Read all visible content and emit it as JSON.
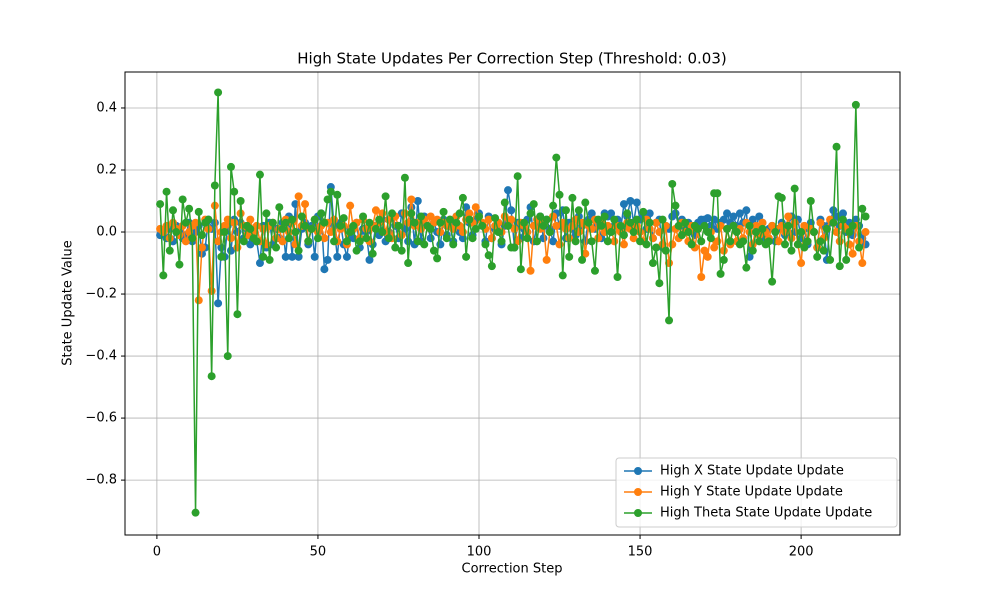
{
  "chart_data": {
    "type": "line",
    "title": "High State Updates Per Correction Step (Threshold: 0.03)",
    "x_label": "Correction Step",
    "y_label": "State Update Value",
    "x": [
      1,
      2,
      3,
      4,
      5,
      6,
      7,
      8,
      9,
      10,
      11,
      12,
      13,
      14,
      15,
      16,
      17,
      18,
      19,
      20,
      21,
      22,
      23,
      24,
      25,
      26,
      27,
      28,
      29,
      30,
      31,
      32,
      33,
      34,
      35,
      36,
      37,
      38,
      39,
      40,
      41,
      42,
      43,
      44,
      45,
      46,
      47,
      48,
      49,
      50,
      51,
      52,
      53,
      54,
      55,
      56,
      57,
      58,
      59,
      60,
      61,
      62,
      63,
      64,
      65,
      66,
      67,
      68,
      69,
      70,
      71,
      72,
      73,
      74,
      75,
      76,
      77,
      78,
      79,
      80,
      81,
      82,
      83,
      84,
      85,
      86,
      87,
      88,
      89,
      90,
      91,
      92,
      93,
      94,
      95,
      96,
      97,
      98,
      99,
      100,
      101,
      102,
      103,
      104,
      105,
      106,
      107,
      108,
      109,
      110,
      111,
      112,
      113,
      114,
      115,
      116,
      117,
      118,
      119,
      120,
      121,
      122,
      123,
      124,
      125,
      126,
      127,
      128,
      129,
      130,
      131,
      132,
      133,
      134,
      135,
      136,
      137,
      138,
      139,
      140,
      141,
      142,
      143,
      144,
      145,
      146,
      147,
      148,
      149,
      150,
      151,
      152,
      153,
      154,
      155,
      156,
      157,
      158,
      159,
      160,
      161,
      162,
      163,
      164,
      165,
      166,
      167,
      168,
      169,
      170,
      171,
      172,
      173,
      174,
      175,
      176,
      177,
      178,
      179,
      180,
      181,
      182,
      183,
      184,
      185,
      186,
      187,
      188,
      189,
      190,
      191,
      192,
      193,
      194,
      195,
      196,
      197,
      198,
      199,
      200,
      201,
      202,
      203,
      204,
      205,
      206,
      207,
      208,
      209,
      210,
      211,
      212,
      213,
      214,
      215,
      216,
      217,
      218,
      219,
      220
    ],
    "series": [
      {
        "name": "High X State Update Update",
        "color": "#1f77b4",
        "values": [
          -0.01,
          0.0,
          -0.02,
          0.01,
          -0.03,
          0.02,
          0.0,
          -0.02,
          -0.01,
          0.03,
          -0.03,
          0.0,
          0.02,
          -0.07,
          -0.05,
          0.04,
          0.01,
          0.03,
          -0.23,
          -0.05,
          -0.08,
          0.02,
          -0.06,
          0.04,
          0.0,
          0.03,
          -0.02,
          0.01,
          -0.04,
          -0.01,
          -0.03,
          -0.1,
          0.02,
          -0.05,
          0.03,
          -0.04,
          0.01,
          -0.02,
          0.03,
          -0.08,
          0.05,
          -0.08,
          0.09,
          -0.08,
          0.01,
          0.03,
          -0.04,
          0.02,
          -0.08,
          0.05,
          0.06,
          -0.12,
          -0.09,
          0.145,
          0.02,
          -0.08,
          0.03,
          -0.04,
          -0.08,
          0.01,
          -0.02,
          0.03,
          -0.05,
          0.01,
          0.0,
          -0.09,
          -0.04,
          0.02,
          -0.01,
          0.04,
          -0.03,
          0.0,
          0.05,
          0.02,
          -0.02,
          0.06,
          0.01,
          -0.03,
          0.08,
          -0.04,
          0.1,
          -0.03,
          0.05,
          0.02,
          -0.02,
          0.03,
          0.0,
          -0.04,
          0.04,
          -0.01,
          0.02,
          -0.03,
          0.05,
          0.0,
          -0.02,
          0.08,
          0.03,
          -0.01,
          0.04,
          0.06,
          0.02,
          -0.03,
          0.05,
          -0.02,
          0.01,
          0.03,
          -0.04,
          0.02,
          0.135,
          0.07,
          -0.05,
          0.03,
          -0.02,
          0.01,
          0.04,
          0.08,
          -0.03,
          0.02,
          0.05,
          -0.02,
          0.04,
          0.01,
          -0.03,
          0.06,
          0.02,
          0.07,
          -0.02,
          0.03,
          0.01,
          -0.01,
          0.05,
          0.02,
          -0.03,
          0.04,
          0.06,
          0.01,
          0.03,
          -0.02,
          0.06,
          0.05,
          0.06,
          0.02,
          0.04,
          0.01,
          0.09,
          0.05,
          0.1,
          0.03,
          0.095,
          0.04,
          0.05,
          0.01,
          0.06,
          -0.02,
          0.03,
          0.04,
          -0.05,
          0.02,
          0.01,
          0.05,
          0.06,
          0.02,
          0.04,
          0.01,
          0.03,
          0.02,
          -0.01,
          0.03,
          0.04,
          0.04,
          0.045,
          0.02,
          0.04,
          0.01,
          0.03,
          0.04,
          0.06,
          0.03,
          0.05,
          0.02,
          0.06,
          0.03,
          0.07,
          -0.08,
          0.04,
          0.02,
          0.05,
          0.03,
          -0.02,
          0.01,
          0.02,
          -0.03,
          0.01,
          0.03,
          -0.01,
          0.02,
          0.05,
          0.0,
          0.04,
          -0.02,
          0.01,
          -0.04,
          0.03,
          0.0,
          -0.05,
          0.04,
          0.02,
          -0.09,
          0.03,
          0.07,
          0.05,
          0.02,
          0.06,
          0.0,
          0.03,
          -0.01,
          0.04,
          0.02,
          -0.02,
          -0.04
        ]
      },
      {
        "name": "High Y State Update Update",
        "color": "#ff7f0e",
        "values": [
          0.01,
          0.0,
          0.02,
          -0.02,
          0.03,
          0.01,
          -0.01,
          0.02,
          -0.03,
          0.0,
          0.02,
          0.03,
          -0.22,
          -0.05,
          0.04,
          0.01,
          -0.19,
          0.085,
          -0.03,
          0.0,
          0.02,
          0.04,
          -0.02,
          0.03,
          -0.05,
          0.06,
          0.02,
          -0.01,
          0.04,
          0.0,
          0.02,
          -0.03,
          0.01,
          -0.04,
          0.02,
          0.03,
          -0.02,
          0.01,
          -0.03,
          0.04,
          0.0,
          0.03,
          -0.04,
          0.115,
          0.02,
          0.09,
          -0.03,
          0.01,
          0.04,
          0.0,
          0.02,
          -0.02,
          0.03,
          0.0,
          0.04,
          -0.03,
          0.01,
          0.02,
          -0.04,
          0.085,
          0.01,
          0.03,
          -0.02,
          0.04,
          0.01,
          -0.03,
          0.02,
          0.07,
          0.03,
          0.06,
          0.0,
          0.04,
          -0.02,
          0.05,
          0.02,
          -0.01,
          0.06,
          0.03,
          0.105,
          0.02,
          0.03,
          0.01,
          0.04,
          0.02,
          0.05,
          0.03,
          0.04,
          0.0,
          0.03,
          0.02,
          0.04,
          0.01,
          0.05,
          0.02,
          0.0,
          0.04,
          0.06,
          0.03,
          0.08,
          0.05,
          0.03,
          0.01,
          0.04,
          -0.02,
          0.02,
          0.03,
          0.0,
          0.05,
          0.02,
          0.04,
          0.01,
          -0.03,
          0.03,
          0.02,
          0.0,
          -0.125,
          0.02,
          0.04,
          0.01,
          0.03,
          -0.09,
          0.0,
          0.05,
          0.02,
          -0.04,
          0.03,
          0.01,
          -0.02,
          0.02,
          0.04,
          0.0,
          0.03,
          -0.07,
          0.02,
          0.01,
          0.04,
          -0.02,
          0.03,
          0.0,
          0.02,
          0.01,
          -0.03,
          0.02,
          0.0,
          -0.04,
          0.03,
          0.01,
          -0.02,
          0.02,
          0.0,
          -0.03,
          0.04,
          0.01,
          -0.02,
          0.03,
          0.0,
          -0.04,
          0.02,
          -0.1,
          -0.04,
          0.01,
          -0.02,
          0.03,
          0.0,
          -0.03,
          0.02,
          -0.05,
          0.01,
          -0.145,
          -0.06,
          -0.08,
          0.0,
          -0.05,
          -0.03,
          0.02,
          -0.06,
          0.01,
          -0.04,
          0.02,
          -0.03,
          0.01,
          -0.02,
          0.03,
          0.0,
          -0.04,
          0.02,
          -0.01,
          0.03,
          0.0,
          -0.02,
          0.02,
          0.01,
          -0.03,
          0.02,
          0.0,
          0.05,
          -0.02,
          0.03,
          -0.04,
          -0.1,
          0.02,
          -0.03,
          0.01,
          0.0,
          -0.05,
          0.03,
          -0.02,
          0.01,
          0.04,
          0.03,
          0.0,
          -0.03,
          0.02,
          0.01,
          -0.04,
          -0.07,
          0.02,
          -0.03,
          -0.1,
          0.0
        ]
      },
      {
        "name": "High Theta State Update Update",
        "color": "#2ca02c",
        "values": [
          0.09,
          -0.14,
          0.13,
          -0.06,
          0.07,
          0.0,
          -0.105,
          0.105,
          0.03,
          0.075,
          -0.02,
          -0.905,
          0.065,
          -0.01,
          0.03,
          0.04,
          -0.465,
          0.15,
          0.45,
          -0.08,
          0.0,
          -0.4,
          0.21,
          0.13,
          -0.265,
          0.1,
          -0.03,
          0.02,
          0.01,
          -0.02,
          -0.03,
          0.185,
          -0.08,
          0.06,
          -0.09,
          0.03,
          -0.05,
          0.08,
          0.01,
          0.03,
          -0.02,
          0.04,
          0.0,
          -0.06,
          0.05,
          0.02,
          -0.03,
          0.01,
          0.04,
          -0.02,
          0.06,
          0.03,
          0.105,
          0.13,
          -0.03,
          0.12,
          0.02,
          0.045,
          -0.03,
          0.0,
          0.02,
          -0.06,
          -0.03,
          0.05,
          -0.02,
          0.03,
          -0.07,
          0.01,
          0.04,
          0.0,
          0.115,
          -0.02,
          0.06,
          -0.05,
          0.02,
          -0.06,
          0.175,
          -0.1,
          0.06,
          0.03,
          -0.03,
          0.05,
          -0.04,
          0.02,
          0.01,
          -0.06,
          -0.085,
          0.03,
          0.065,
          -0.02,
          0.04,
          -0.04,
          0.03,
          0.06,
          0.11,
          -0.08,
          0.04,
          -0.02,
          0.01,
          0.05,
          0.02,
          -0.04,
          -0.075,
          -0.11,
          0.045,
          0.0,
          -0.03,
          0.095,
          0.02,
          -0.05,
          -0.05,
          0.18,
          -0.12,
          0.03,
          -0.02,
          0.06,
          0.09,
          -0.03,
          0.05,
          0.02,
          0.04,
          0.0,
          0.085,
          0.24,
          0.12,
          -0.14,
          0.07,
          -0.08,
          0.11,
          -0.03,
          0.07,
          -0.09,
          0.095,
          0.03,
          -0.03,
          -0.125,
          0.04,
          0.02,
          0.05,
          -0.03,
          0.0,
          0.04,
          -0.145,
          0.02,
          -0.01,
          0.06,
          0.03,
          0.0,
          0.04,
          -0.03,
          0.065,
          -0.04,
          0.03,
          -0.1,
          -0.05,
          -0.165,
          0.04,
          -0.06,
          -0.285,
          0.155,
          0.085,
          0.02,
          -0.01,
          0.03,
          0.0,
          -0.04,
          0.02,
          0.01,
          -0.03,
          0.02,
          0.0,
          -0.02,
          0.125,
          0.125,
          -0.135,
          -0.09,
          0.01,
          -0.03,
          0.02,
          0.0,
          -0.04,
          -0.03,
          -0.115,
          0.02,
          -0.06,
          0.0,
          -0.03,
          0.01,
          -0.04,
          -0.03,
          -0.16,
          0.0,
          0.115,
          0.11,
          -0.04,
          0.02,
          -0.06,
          0.14,
          -0.04,
          0.0,
          -0.05,
          -0.03,
          0.1,
          0.0,
          -0.08,
          -0.03,
          -0.06,
          0.01,
          -0.09,
          0.03,
          0.275,
          -0.11,
          0.04,
          -0.09,
          0.0,
          0.02,
          0.41,
          -0.05,
          0.075,
          0.05
        ]
      }
    ],
    "xlim": [
      -9.9,
      230.7
    ],
    "ylim": [
      -0.977,
      0.516
    ],
    "xticks": [
      0,
      50,
      100,
      150,
      200
    ],
    "yticks": [
      {
        "value": -0.8,
        "label": "−0.8"
      },
      {
        "value": -0.6,
        "label": "−0.6"
      },
      {
        "value": -0.4,
        "label": "−0.4"
      },
      {
        "value": -0.2,
        "label": "−0.2"
      },
      {
        "value": 0,
        "label": "0.0"
      },
      0.2,
      0.4
    ],
    "grid": true,
    "legend": "lower right"
  }
}
